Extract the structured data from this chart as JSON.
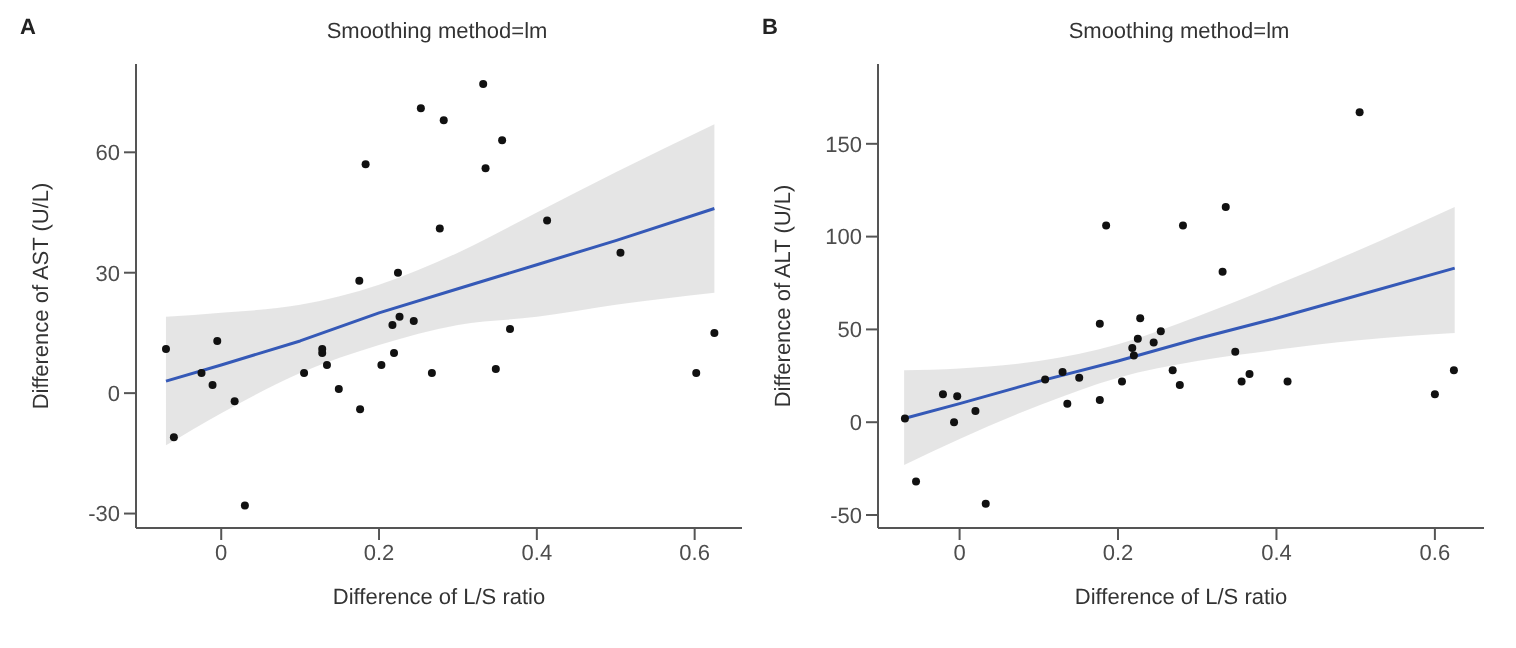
{
  "chart_data": [
    {
      "type": "scatter",
      "title": "Smoothing method=lm",
      "annotations": [
        "A"
      ],
      "xlabel": "Difference of L/S ratio",
      "ylabel": "Difference of AST (U/L)",
      "xlim": [
        -0.108,
        0.66
      ],
      "ylim": [
        -33.6,
        82
      ],
      "xticks": [
        0,
        0.2,
        0.4,
        0.6
      ],
      "yticks": [
        -30,
        0,
        30,
        60
      ],
      "grid": false,
      "legend": false,
      "series": [
        {
          "color": "#111111",
          "marker": "circle",
          "x": [
            -0.07,
            -0.06,
            -0.025,
            -0.005,
            -0.011,
            0.017,
            0.03,
            0.105,
            0.128,
            0.128,
            0.134,
            0.149,
            0.175,
            0.176,
            0.183,
            0.203,
            0.217,
            0.219,
            0.224,
            0.226,
            0.244,
            0.253,
            0.267,
            0.277,
            0.282,
            0.332,
            0.335,
            0.348,
            0.356,
            0.366,
            0.413,
            0.506,
            0.602,
            0.625
          ],
          "values": [
            11,
            -11,
            5,
            13,
            2,
            -2,
            -28,
            5,
            11,
            10,
            7,
            1,
            28,
            -4,
            57,
            7,
            17,
            10,
            30,
            19,
            18,
            71,
            5,
            41,
            68,
            77,
            56,
            6,
            63,
            16,
            43,
            35,
            5,
            15
          ]
        },
        {
          "type": "line",
          "marker": "none",
          "color": "#3559b7",
          "x": [
            -0.07,
            0,
            0.1,
            0.2,
            0.3,
            0.4,
            0.5,
            0.625
          ],
          "values": [
            3,
            7,
            13,
            20,
            26,
            32,
            38,
            46
          ],
          "lower": [
            -13,
            -5,
            5,
            12,
            17,
            19,
            22,
            25
          ],
          "upper": [
            19,
            20,
            22,
            27,
            35,
            45,
            55,
            67
          ]
        }
      ]
    },
    {
      "type": "scatter",
      "title": "Smoothing method=lm",
      "annotations": [
        "B"
      ],
      "xlabel": "Difference of L/S ratio",
      "ylabel": "Difference of ALT (U/L)",
      "xlim": [
        -0.103,
        0.662
      ],
      "ylim": [
        -57,
        193
      ],
      "xticks": [
        0,
        0.2,
        0.4,
        0.6
      ],
      "yticks": [
        -50,
        0,
        50,
        100,
        150
      ],
      "grid": false,
      "legend": false,
      "series": [
        {
          "color": "#111111",
          "marker": "circle",
          "x": [
            -0.069,
            -0.055,
            -0.021,
            -0.003,
            -0.007,
            0.02,
            0.033,
            0.108,
            0.13,
            0.136,
            0.151,
            0.177,
            0.177,
            0.185,
            0.205,
            0.218,
            0.22,
            0.225,
            0.228,
            0.245,
            0.254,
            0.269,
            0.278,
            0.282,
            0.332,
            0.336,
            0.348,
            0.356,
            0.366,
            0.414,
            0.505,
            0.6,
            0.624
          ],
          "values": [
            2,
            -32,
            15,
            14,
            0,
            6,
            -44,
            23,
            27,
            10,
            24,
            53,
            12,
            106,
            22,
            40,
            36,
            45,
            56,
            43,
            49,
            28,
            20,
            106,
            81,
            116,
            38,
            22,
            26,
            22,
            167,
            15,
            28
          ]
        },
        {
          "type": "line",
          "marker": "none",
          "color": "#3559b7",
          "x": [
            -0.07,
            0,
            0.1,
            0.2,
            0.3,
            0.4,
            0.5,
            0.625
          ],
          "values": [
            2,
            10,
            22,
            33,
            45,
            56,
            68,
            83
          ],
          "lower": [
            -23,
            -9,
            9,
            24,
            33,
            39,
            44,
            48
          ],
          "upper": [
            28,
            29,
            33,
            42,
            57,
            74,
            92,
            116
          ]
        }
      ]
    }
  ]
}
